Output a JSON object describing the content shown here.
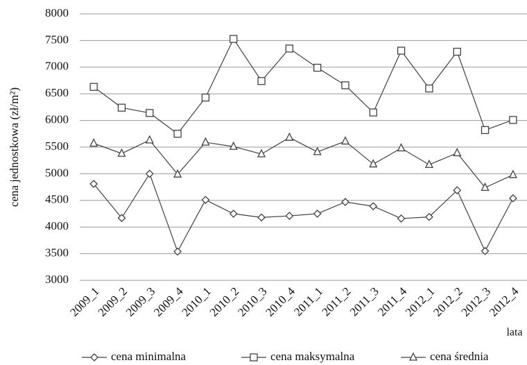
{
  "chart_data": {
    "type": "line",
    "y_label": "cena jednostkowa (zł/m²)",
    "x_label": "lata",
    "categories": [
      "2009_1",
      "2009_2",
      "2009_3",
      "2009_4",
      "2010_1",
      "2010_2",
      "2010_3",
      "2010_4",
      "2011_1",
      "2011_2",
      "2011_3",
      "2011_4",
      "2012_1",
      "2012_2",
      "2012_3",
      "2012_4"
    ],
    "series": [
      {
        "name": "cena minimalna",
        "color": "#404040",
        "marker": "diamond",
        "values": [
          4810,
          4170,
          5000,
          3540,
          4510,
          4250,
          4180,
          4210,
          4250,
          4470,
          4390,
          4160,
          4190,
          4690,
          3550,
          4540
        ]
      },
      {
        "name": "cena maksymalna",
        "color": "#404040",
        "marker": "square",
        "values": [
          6630,
          6240,
          6140,
          5750,
          6430,
          7530,
          6740,
          7350,
          6990,
          6660,
          6150,
          7310,
          6600,
          7290,
          5820,
          6010
        ]
      },
      {
        "name": "cena średnia",
        "color": "#404040",
        "marker": "triangle",
        "values": [
          5570,
          5380,
          5630,
          4990,
          5590,
          5510,
          5370,
          5680,
          5410,
          5610,
          5180,
          5480,
          5170,
          5390,
          4740,
          4980
        ]
      }
    ],
    "ylim": [
      3000,
      8000
    ],
    "yticks": [
      3000,
      3500,
      4000,
      4500,
      5000,
      5500,
      6000,
      6500,
      7000,
      7500,
      8000
    ],
    "grid": true,
    "legend": "bottom"
  }
}
